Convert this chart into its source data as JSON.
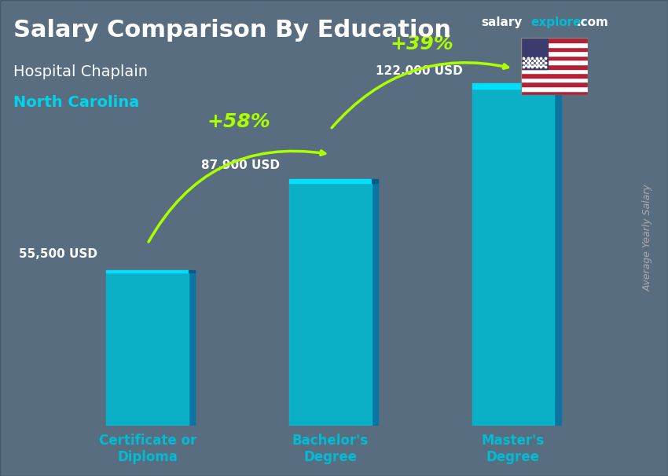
{
  "title_main": "Salary Comparison By Education",
  "subtitle1": "Hospital Chaplain",
  "subtitle2": "North Carolina",
  "ylabel": "Average Yearly Salary",
  "categories": [
    "Certificate or\nDiploma",
    "Bachelor's\nDegree",
    "Master's\nDegree"
  ],
  "values": [
    55500,
    87900,
    122000
  ],
  "value_labels": [
    "55,500 USD",
    "87,900 USD",
    "122,000 USD"
  ],
  "bar_color_top": "#00d4e8",
  "bar_color_bottom": "#007bb5",
  "bar_color_face": "#00bcd4",
  "pct_labels": [
    "+58%",
    "+39%"
  ],
  "pct_arrow_from": [
    0,
    1
  ],
  "pct_arrow_to": [
    1,
    2
  ],
  "background_color": "#1a3a4a",
  "title_color": "#ffffff",
  "subtitle1_color": "#ffffff",
  "subtitle2_color": "#00d4e8",
  "value_label_color": "#ffffff",
  "pct_label_color": "#aaff00",
  "xtick_color": "#00bcd4",
  "brand_text_salary": "salary",
  "brand_text_explorer": "explorer",
  "brand_text_com": ".com",
  "brand_color_salary": "#ffffff",
  "brand_color_explorer": "#00bcd4",
  "ylim_max": 150000,
  "bar_width": 0.45
}
